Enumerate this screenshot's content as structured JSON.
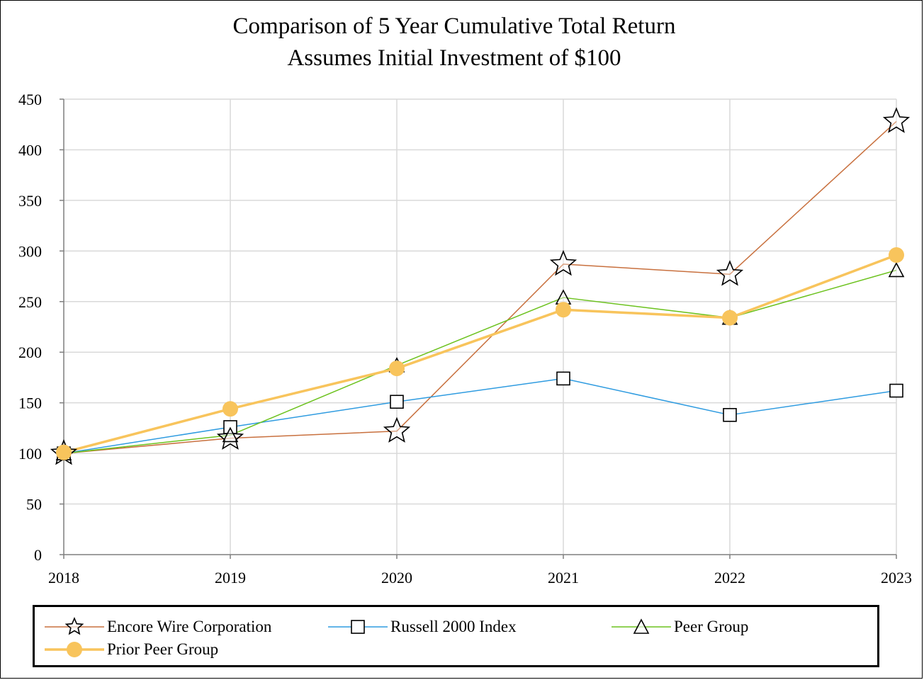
{
  "chart_data": {
    "type": "line",
    "title": "Comparison of 5 Year Cumulative Total Return",
    "subtitle": "Assumes Initial Investment of $100",
    "xlabel": "",
    "ylabel": "",
    "categories": [
      "2018",
      "2019",
      "2020",
      "2021",
      "2022",
      "2023"
    ],
    "ylim": [
      0,
      450
    ],
    "yticks": [
      0,
      50,
      100,
      150,
      200,
      250,
      300,
      350,
      400,
      450
    ],
    "grid": true,
    "legend_position": "bottom",
    "series": [
      {
        "name": "Encore Wire Corporation",
        "values": [
          100,
          115,
          122,
          287,
          277,
          428
        ],
        "color": "#c8703e",
        "marker": "star",
        "line_width": 1.5
      },
      {
        "name": "Russell 2000 Index",
        "values": [
          100,
          126,
          151,
          174,
          138,
          162
        ],
        "color": "#2e9be0",
        "marker": "square",
        "line_width": 1.5
      },
      {
        "name": "Peer Group",
        "values": [
          100,
          118,
          187,
          254,
          234,
          281
        ],
        "color": "#6cc21e",
        "marker": "triangle",
        "line_width": 1.5
      },
      {
        "name": "Prior Peer Group",
        "values": [
          101,
          144,
          184,
          242,
          234,
          296
        ],
        "color": "#f8c45c",
        "marker": "circle",
        "line_width": 3.5
      }
    ]
  }
}
